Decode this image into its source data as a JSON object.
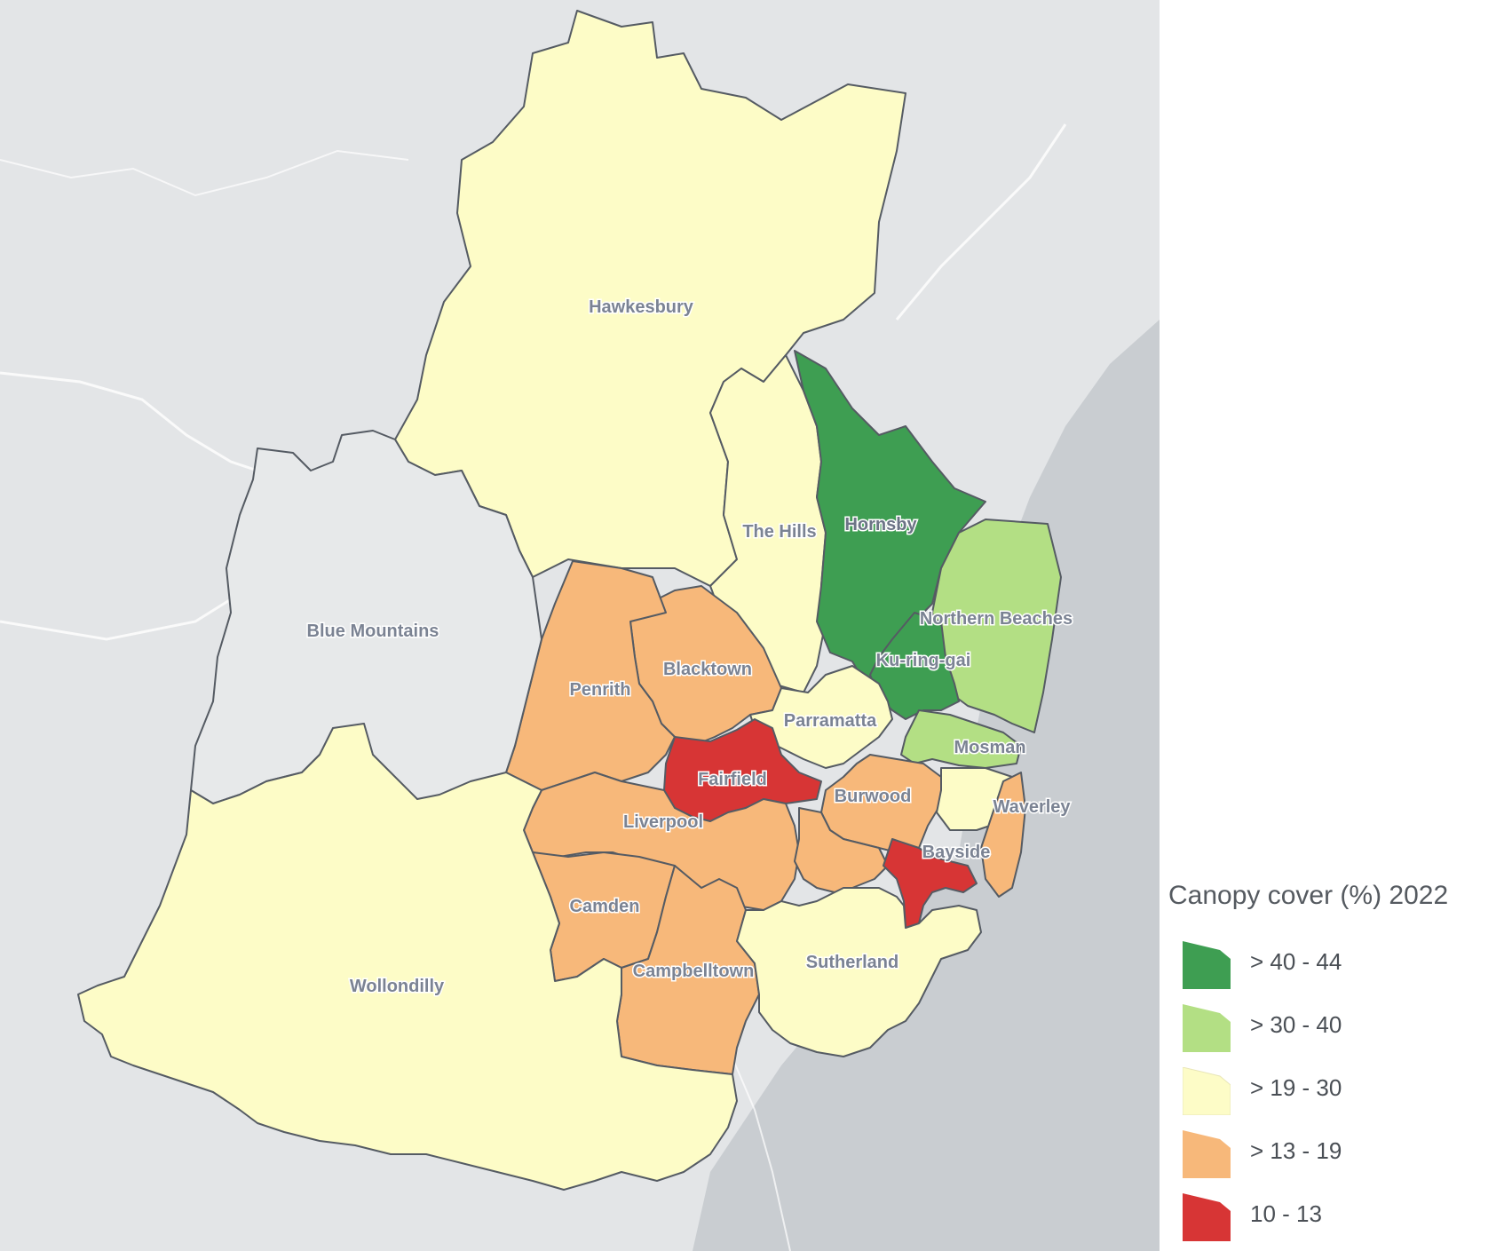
{
  "legend": {
    "title": "Canopy cover (%) 2022",
    "classes": [
      {
        "label": "> 40 - 44",
        "color": "#3e9e52"
      },
      {
        "label": "> 30 - 40",
        "color": "#b3df84"
      },
      {
        "label": "> 19 - 30",
        "color": "#fdfcc7"
      },
      {
        "label": "> 13 - 19",
        "color": "#f7b87a"
      },
      {
        "label": "10 - 13",
        "color": "#d73535"
      }
    ]
  },
  "regions": {
    "hawkesbury": "Hawkesbury",
    "the_hills": "The Hills",
    "hornsby": "Hornsby",
    "blue_mountains": "Blue Mountains",
    "northern_beaches": "Northern Beaches",
    "ku_ring_gai": "Ku-ring-gai",
    "blacktown": "Blacktown",
    "penrith": "Penrith",
    "parramatta": "Parramatta",
    "mosman": "Mosman",
    "fairfield": "Fairfield",
    "burwood": "Burwood",
    "waverley": "Waverley",
    "liverpool": "Liverpool",
    "bayside": "Bayside",
    "camden": "Camden",
    "sutherland": "Sutherland",
    "campbelltown": "Campbelltown",
    "wollondilly": "Wollondilly"
  }
}
